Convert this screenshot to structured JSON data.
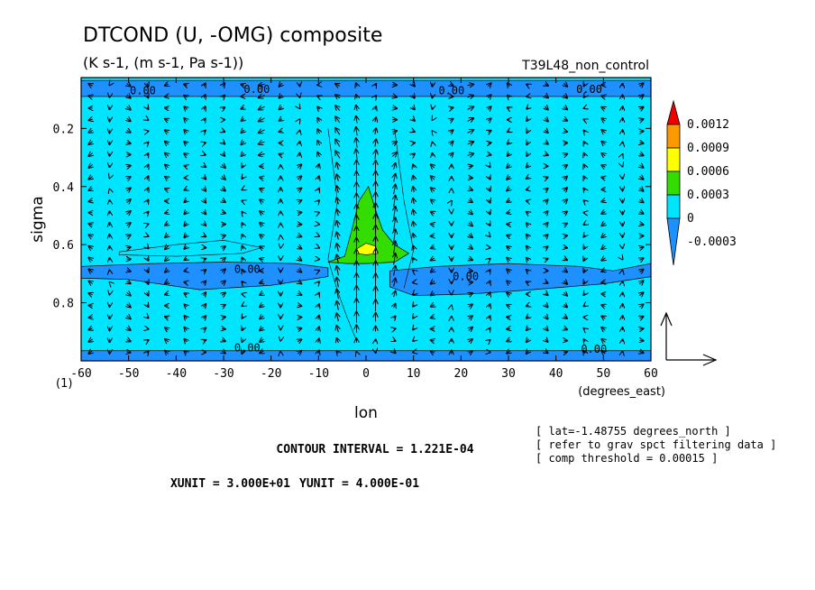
{
  "chart_data": {
    "type": "contour_vector",
    "title": "DTCOND (U, -OMG) composite",
    "subtitle": "(K s-1, (m s-1, Pa s-1))",
    "run_label": "T39L48_non_control",
    "xlabel": "lon",
    "x_unit_label": "(degrees_east)",
    "ylabel": "sigma",
    "y_bottom_label": "(1)",
    "xlim": [
      -60,
      60
    ],
    "ylim": [
      0.025,
      1.0
    ],
    "x_ticks": [
      -60,
      -50,
      -40,
      -30,
      -20,
      -10,
      0,
      10,
      20,
      30,
      40,
      50,
      60
    ],
    "x_tick_labels": [
      "-60",
      "-50",
      "-40",
      "-30",
      "-20",
      "-10",
      "0",
      "10",
      "20",
      "30",
      "40",
      "50",
      "60"
    ],
    "y_ticks": [
      0.2,
      0.4,
      0.6,
      0.8
    ],
    "y_tick_labels": [
      "0.2",
      "0.4",
      "0.6",
      "0.8"
    ],
    "colorbar": {
      "levels": [
        -0.0003,
        0,
        0.0003,
        0.0006,
        0.0009,
        0.0012
      ],
      "labels": [
        "-0.0003",
        "0",
        "0.0003",
        "0.0006",
        "0.0009",
        "0.0012"
      ],
      "colors": [
        "#1e90ff",
        "#00e5ff",
        "#33dd00",
        "#ffff00",
        "#ff9900",
        "#ee0000"
      ]
    },
    "contour_labels": [
      {
        "text": "0.00",
        "lon": -47,
        "sigma": 0.07
      },
      {
        "text": "0.00",
        "lon": -23,
        "sigma": 0.065
      },
      {
        "text": "0.00",
        "lon": 18,
        "sigma": 0.07
      },
      {
        "text": "0.00",
        "lon": 47,
        "sigma": 0.065
      },
      {
        "text": "0.00",
        "lon": -25,
        "sigma": 0.685
      },
      {
        "text": "0.00",
        "lon": 21,
        "sigma": 0.71
      },
      {
        "text": "0.00",
        "lon": -25,
        "sigma": 0.955
      },
      {
        "text": "0.00",
        "lon": 48,
        "sigma": 0.96
      }
    ],
    "heating_max": {
      "lon": 0,
      "sigma": 0.6,
      "value": 0.0009
    },
    "reference_vector": {
      "x_unit": "XUNIT = 3.000E+01",
      "y_unit": "YUNIT = 4.000E-01"
    },
    "contour_interval": "CONTOUR INTERVAL = 1.221E-04",
    "notes": [
      "[ lat=-1.48755 degrees_north ]",
      "[ refer to grav spct filtering data ]",
      "[ comp threshold = 0.00015 ]"
    ]
  }
}
